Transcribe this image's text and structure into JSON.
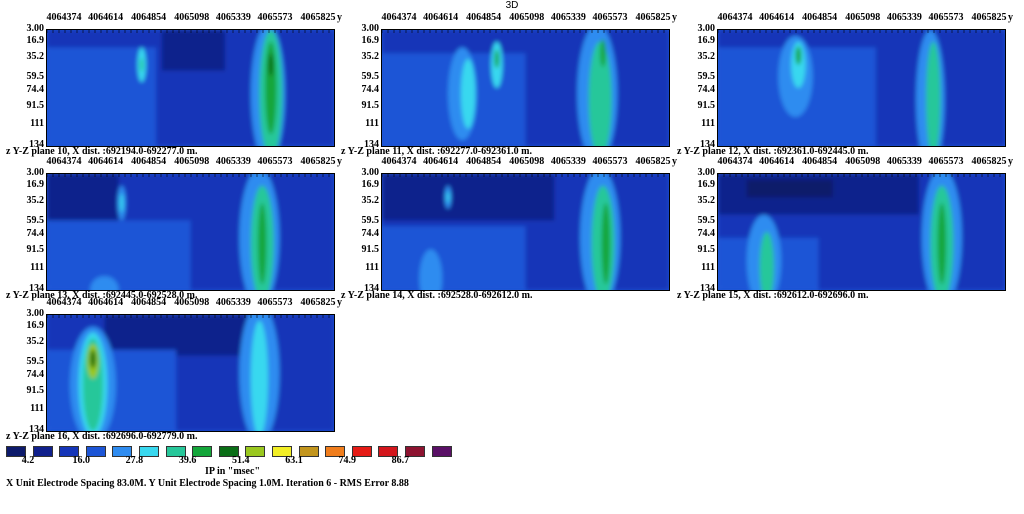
{
  "page_title": "3D",
  "chart_data": {
    "type": "heatmap",
    "y_ticks": [
      "4064374",
      "4064614",
      "4064854",
      "4065098",
      "4065339",
      "4065573",
      "4065825"
    ],
    "y_axis_label": "y",
    "depth_ticks": [
      "3.00",
      "16.9",
      "35.2",
      "59.5",
      "74.4",
      "91.5",
      "111",
      "134"
    ],
    "depth_axis_label": "z",
    "panels": [
      {
        "caption": "Y-Z plane 10, X dist. :692194.0-692277.0 m."
      },
      {
        "caption": "Y-Z plane 11, X dist. :692277.0-692361.0 m."
      },
      {
        "caption": "Y-Z plane 12, X dist. :692361.0-692445.0 m."
      },
      {
        "caption": "Y-Z plane 13, X dist. :692445.0-692528.0 m."
      },
      {
        "caption": "Y-Z plane 14, X dist. :692528.0-692612.0 m."
      },
      {
        "caption": "Y-Z plane 15, X dist. :692612.0-692696.0 m."
      },
      {
        "caption": "Y-Z plane 16, X dist. :692696.0-692779.0 m."
      }
    ],
    "legend": {
      "title": "IP in \"msec\"",
      "labels": [
        "4.2",
        "16.0",
        "27.8",
        "39.6",
        "51.4",
        "63.1",
        "74.9",
        "86.7"
      ],
      "colors": [
        "#0d1a6b",
        "#10208c",
        "#1535b8",
        "#1c55d6",
        "#2f8cf0",
        "#39d8ef",
        "#27c79a",
        "#14a63a",
        "#0a6e16",
        "#9ac81f",
        "#f2ee25",
        "#c2951d",
        "#f07d1c",
        "#e51b16",
        "#d3161c",
        "#8d1330",
        "#5a1066"
      ]
    }
  },
  "footer": "X Unit Electrode Spacing 83.0M.  Y Unit Electrode Spacing 1.0M.   Iteration 6 - RMS Error 8.88"
}
